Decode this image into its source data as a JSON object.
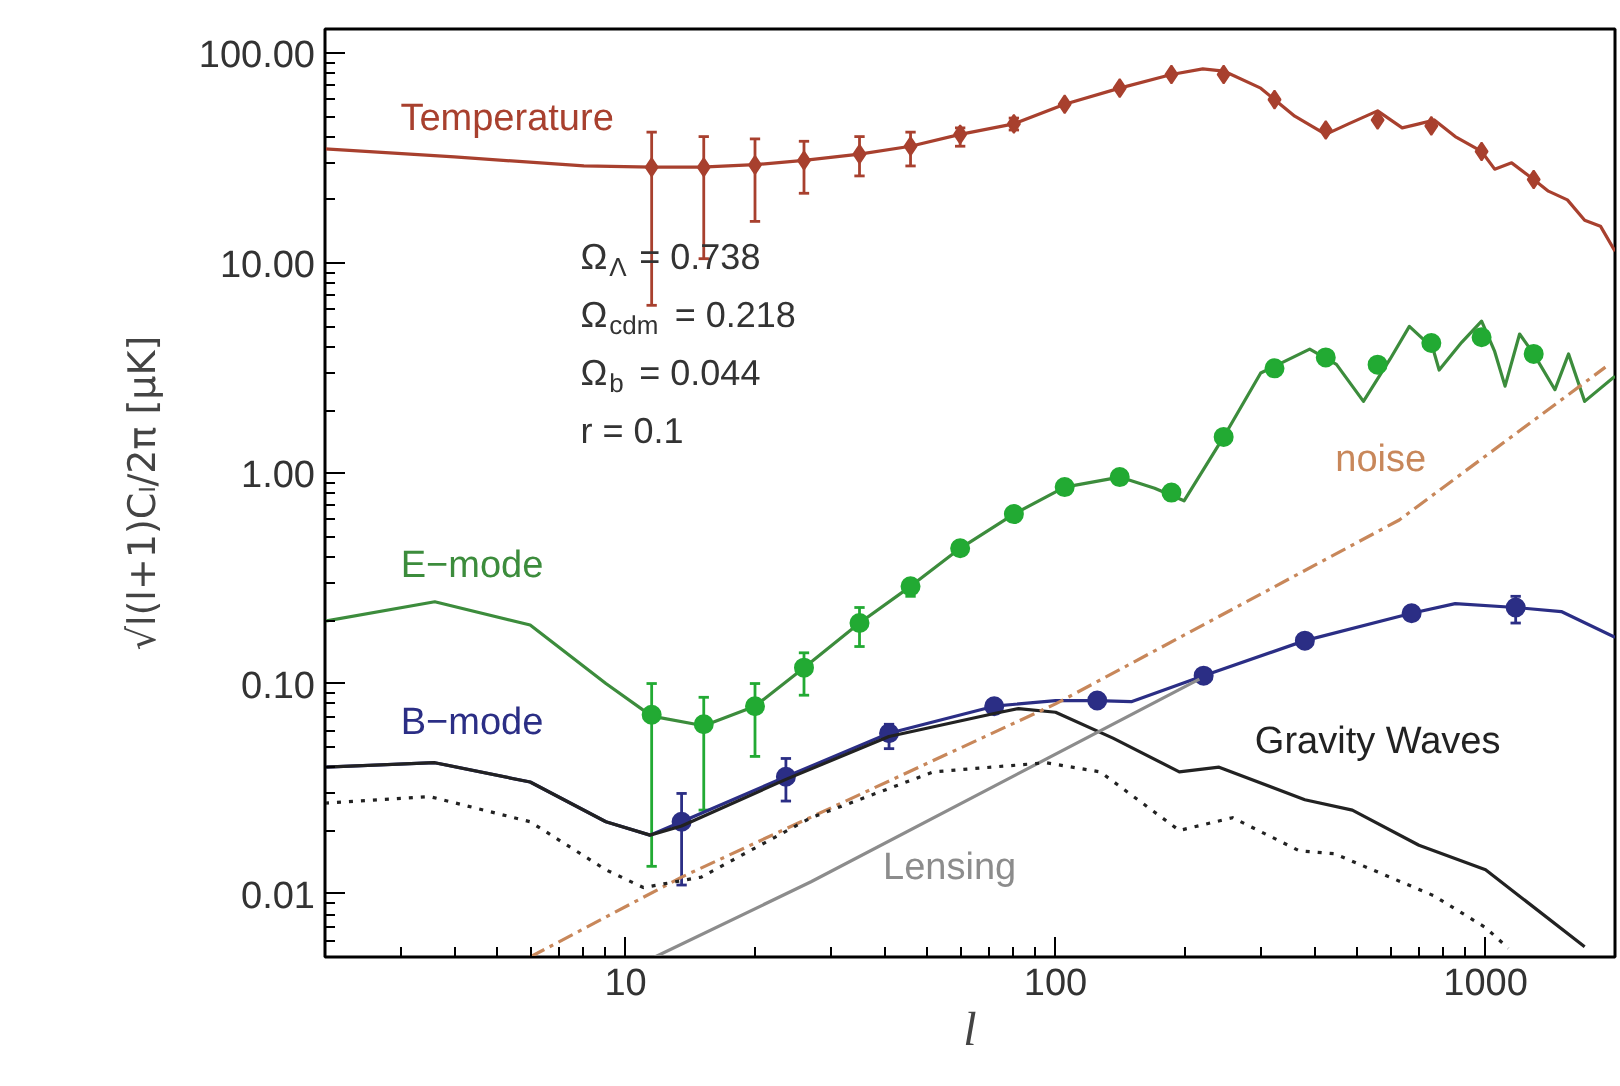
{
  "chart_data": {
    "type": "line",
    "xlabel": "l",
    "ylabel": "√l(l+1)Cₗ/2π [μK]",
    "log": "xy",
    "grid": false,
    "xlim": [
      2,
      2000
    ],
    "ylim": [
      0.005,
      130
    ],
    "xticks": [
      10,
      100,
      1000
    ],
    "yticks": [
      {
        "value": 0.01,
        "label": "0.01"
      },
      {
        "value": 0.1,
        "label": "0.10"
      },
      {
        "value": 1,
        "label": "1.00"
      },
      {
        "value": 10,
        "label": "10.00"
      },
      {
        "value": 100,
        "label": "100.00"
      }
    ],
    "annotations": [
      "Ω$_{Λ}$ = 0.738",
      "Ω$_{cdm}$ = 0.218",
      "Ω$_{b}$ = 0.044",
      "r = 0.1"
    ],
    "series": [
      {
        "name": "Temperature",
        "color": "#a8402e",
        "line_style": "solid",
        "x": [
          2,
          4,
          8,
          11.5,
          15,
          20,
          26,
          35,
          46,
          60,
          80,
          105,
          141,
          186,
          220,
          246,
          300,
          360,
          425,
          480,
          561,
          640,
          700,
          760,
          850,
          979,
          1050,
          1150,
          1294,
          1400,
          1550,
          1700,
          1850,
          2000
        ],
        "values": [
          35,
          32,
          29,
          28.6,
          28.6,
          29.4,
          30.8,
          33,
          36,
          41,
          46,
          57,
          68,
          79,
          84,
          82,
          68,
          50,
          41,
          46,
          53,
          44,
          46,
          48,
          40,
          34,
          28,
          30,
          25,
          22,
          20,
          16,
          15,
          11.4
        ]
      },
      {
        "type": "scatter",
        "marker": "diamond",
        "color": "#a8402e",
        "x": [
          11.5,
          15.2,
          20,
          26,
          35,
          46,
          60,
          80,
          105,
          141,
          186,
          246,
          323,
          425,
          561,
          748,
          979,
          1294
        ],
        "values": [
          28.6,
          28.6,
          29.3,
          30.8,
          33,
          36,
          41,
          46,
          57,
          68,
          79,
          79,
          60,
          43,
          48,
          45,
          34,
          25
        ],
        "errors": [
          [
            6.3,
            42
          ],
          [
            10.5,
            40
          ],
          [
            15.8,
            39
          ],
          [
            21.5,
            38
          ],
          [
            26,
            40
          ],
          [
            29,
            42
          ],
          [
            36,
            44
          ],
          [
            43,
            49
          ],
          null,
          null,
          null,
          null,
          null,
          null,
          null,
          null,
          null,
          null
        ]
      },
      {
        "name": "E−mode",
        "color": "#3c8c3c",
        "line_style": "solid",
        "x": [
          2,
          3.6,
          6,
          9,
          11.5,
          15.2,
          20,
          26,
          35,
          46,
          60,
          80,
          105,
          141,
          170,
          199,
          246,
          300,
          390,
          450,
          520,
          600,
          665,
          720,
          748,
          780,
          880,
          979,
          1050,
          1110,
          1200,
          1294,
          1450,
          1560,
          1700,
          2000
        ],
        "values": [
          0.198,
          0.245,
          0.19,
          0.1,
          0.07,
          0.063,
          0.078,
          0.119,
          0.194,
          0.29,
          0.44,
          0.64,
          0.86,
          0.96,
          0.85,
          0.74,
          1.49,
          3.0,
          3.9,
          3.3,
          2.2,
          3.5,
          5.0,
          4.3,
          4.17,
          3.1,
          4.2,
          5.3,
          3.8,
          2.6,
          4.6,
          3.7,
          2.5,
          3.7,
          2.2,
          2.9
        ]
      },
      {
        "type": "scatter",
        "marker": "circle",
        "color": "#22aa33",
        "x": [
          11.5,
          15.2,
          20,
          26,
          35,
          46,
          60,
          80,
          105,
          141,
          186,
          246,
          323,
          425,
          561,
          748,
          979,
          1294
        ],
        "values": [
          0.071,
          0.064,
          0.078,
          0.119,
          0.194,
          0.29,
          0.44,
          0.64,
          0.86,
          0.96,
          0.81,
          1.49,
          3.16,
          3.56,
          3.29,
          4.17,
          4.44,
          3.7
        ],
        "errors": [
          [
            0.0135,
            0.1
          ],
          [
            0.025,
            0.086
          ],
          [
            0.045,
            0.1
          ],
          [
            0.088,
            0.14
          ],
          [
            0.15,
            0.23
          ],
          [
            0.26,
            0.31
          ],
          null,
          null,
          null,
          null,
          null,
          null,
          null,
          null,
          null,
          null,
          null,
          null
        ]
      },
      {
        "name": "B−mode",
        "color": "#2b2e85",
        "line_style": "solid",
        "x": [
          2,
          3.6,
          6,
          9,
          11.4,
          13.5,
          23.6,
          41,
          72,
          100,
          125,
          150,
          221,
          380,
          673,
          850,
          1175,
          1500,
          2000
        ],
        "values": [
          0.04,
          0.042,
          0.034,
          0.022,
          0.019,
          0.022,
          0.036,
          0.058,
          0.078,
          0.083,
          0.083,
          0.082,
          0.109,
          0.16,
          0.216,
          0.24,
          0.23,
          0.22,
          0.166
        ]
      },
      {
        "type": "scatter",
        "marker": "circle",
        "color": "#2b2e85",
        "x": [
          13.5,
          23.6,
          41,
          72,
          125,
          221,
          380,
          673,
          1175
        ],
        "values": [
          0.022,
          0.036,
          0.058,
          0.078,
          0.083,
          0.109,
          0.16,
          0.216,
          0.23
        ],
        "errors": [
          [
            0.011,
            0.03
          ],
          [
            0.0276,
            0.044
          ],
          [
            0.049,
            0.064
          ],
          [
            0.073,
            0.082
          ],
          null,
          null,
          null,
          null,
          [
            0.194,
            0.26
          ]
        ]
      },
      {
        "name": "Gravity Waves",
        "color": "#222222",
        "line_style": "solid",
        "x": [
          2,
          3.6,
          6,
          9,
          11.4,
          13.5,
          23.6,
          41,
          72,
          82,
          100,
          136,
          194,
          240,
          380,
          490,
          700,
          1000,
          1700
        ],
        "values": [
          0.04,
          0.042,
          0.034,
          0.022,
          0.019,
          0.021,
          0.035,
          0.056,
          0.072,
          0.076,
          0.073,
          0.055,
          0.038,
          0.04,
          0.028,
          0.025,
          0.017,
          0.013,
          0.0056
        ]
      },
      {
        "name": "Lensing",
        "color": "#8c8c8c",
        "line_style": "solid",
        "x": [
          11.7,
          27,
          216
        ],
        "values": [
          0.005,
          0.0114,
          0.105
        ]
      },
      {
        "name": "noise",
        "color": "#c8875a",
        "line_style": "dashed",
        "x": [
          6,
          13.5,
          100,
          630,
          1900
        ],
        "values": [
          0.005,
          0.012,
          0.08,
          0.6,
          3.2
        ]
      },
      {
        "color": "#222222",
        "line_style": "dotted",
        "x": [
          2,
          3.5,
          6,
          9,
          11,
          15,
          27,
          52,
          95,
          127,
          194,
          258,
          369,
          445,
          757,
          1000,
          1130
        ],
        "values": [
          0.027,
          0.029,
          0.022,
          0.013,
          0.0107,
          0.012,
          0.023,
          0.038,
          0.042,
          0.038,
          0.02,
          0.023,
          0.016,
          0.0155,
          0.0098,
          0.0069,
          0.0055
        ]
      }
    ]
  }
}
